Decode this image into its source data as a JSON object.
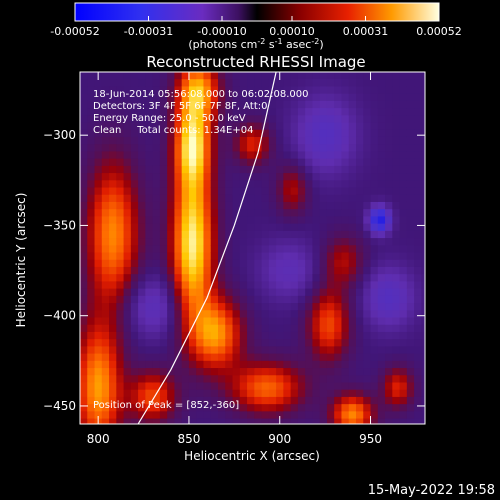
{
  "chart_data": {
    "type": "heatmap",
    "title": "Reconstructed RHESSI Image",
    "xlabel": "Heliocentric X (arcsec)",
    "ylabel": "Heliocentric Y (arcsec)",
    "xlim": [
      790,
      980
    ],
    "ylim": [
      -460,
      -265
    ],
    "x_ticks": [
      800,
      850,
      900,
      950
    ],
    "y_ticks": [
      -300,
      -350,
      -400,
      -450
    ],
    "colorbar": {
      "ticks": [
        "-0.00052",
        "-0.00031",
        "-0.00010",
        "0.00010",
        "0.00031",
        "0.00052"
      ],
      "range": [
        -0.00052,
        0.00052
      ],
      "unit_label_parts": [
        "(photons cm",
        "-2",
        " s",
        "-1",
        " asec",
        "-2",
        ")"
      ]
    },
    "annotations": [
      "18-Jun-2014 05:56:08.000 to 06:02:08.000",
      "Detectors: 3F 4F 5F 6F 7F 8F, Att:0",
      "Energy Range: 25.0 - 50.0 keV",
      "Clean     Total counts: 1.34E+04"
    ],
    "peak_label": "Position of Peak = [852,-360]",
    "peak_position": [
      852,
      -360
    ],
    "limb_curve": [
      [
        822,
        -460
      ],
      [
        840,
        -430
      ],
      [
        860,
        -390
      ],
      [
        875,
        -350
      ],
      [
        888,
        -310
      ],
      [
        898,
        -265
      ]
    ],
    "blobs": [
      {
        "x": 852,
        "y": -360,
        "sx": 8,
        "sy": 30,
        "v": 1.0
      },
      {
        "x": 852,
        "y": -305,
        "sx": 7,
        "sy": 16,
        "v": 0.85
      },
      {
        "x": 855,
        "y": -275,
        "sx": 8,
        "sy": 12,
        "v": 0.75
      },
      {
        "x": 808,
        "y": -355,
        "sx": 10,
        "sy": 28,
        "v": 0.7
      },
      {
        "x": 800,
        "y": -440,
        "sx": 9,
        "sy": 25,
        "v": 0.75
      },
      {
        "x": 865,
        "y": -410,
        "sx": 10,
        "sy": 14,
        "v": 0.72
      },
      {
        "x": 893,
        "y": -440,
        "sx": 14,
        "sy": 10,
        "v": 0.62
      },
      {
        "x": 927,
        "y": -405,
        "sx": 8,
        "sy": 14,
        "v": 0.55
      },
      {
        "x": 940,
        "y": -455,
        "sx": 8,
        "sy": 8,
        "v": 0.7
      },
      {
        "x": 885,
        "y": -305,
        "sx": 7,
        "sy": 8,
        "v": 0.45
      },
      {
        "x": 830,
        "y": -445,
        "sx": 9,
        "sy": 10,
        "v": 0.55
      },
      {
        "x": 907,
        "y": -330,
        "sx": 6,
        "sy": 10,
        "v": 0.35
      },
      {
        "x": 935,
        "y": -370,
        "sx": 8,
        "sy": 10,
        "v": 0.35
      },
      {
        "x": 965,
        "y": -440,
        "sx": 6,
        "sy": 8,
        "v": 0.45
      },
      {
        "x": 955,
        "y": -347,
        "sx": 4,
        "sy": 5,
        "v": -0.85
      },
      {
        "x": 925,
        "y": -300,
        "sx": 12,
        "sy": 15,
        "v": -0.35
      },
      {
        "x": 830,
        "y": -395,
        "sx": 12,
        "sy": 12,
        "v": -0.3
      },
      {
        "x": 905,
        "y": -375,
        "sx": 12,
        "sy": 12,
        "v": -0.25
      },
      {
        "x": 960,
        "y": -390,
        "sx": 10,
        "sy": 12,
        "v": -0.35
      }
    ]
  },
  "timestamp": "15-May-2022 19:58"
}
